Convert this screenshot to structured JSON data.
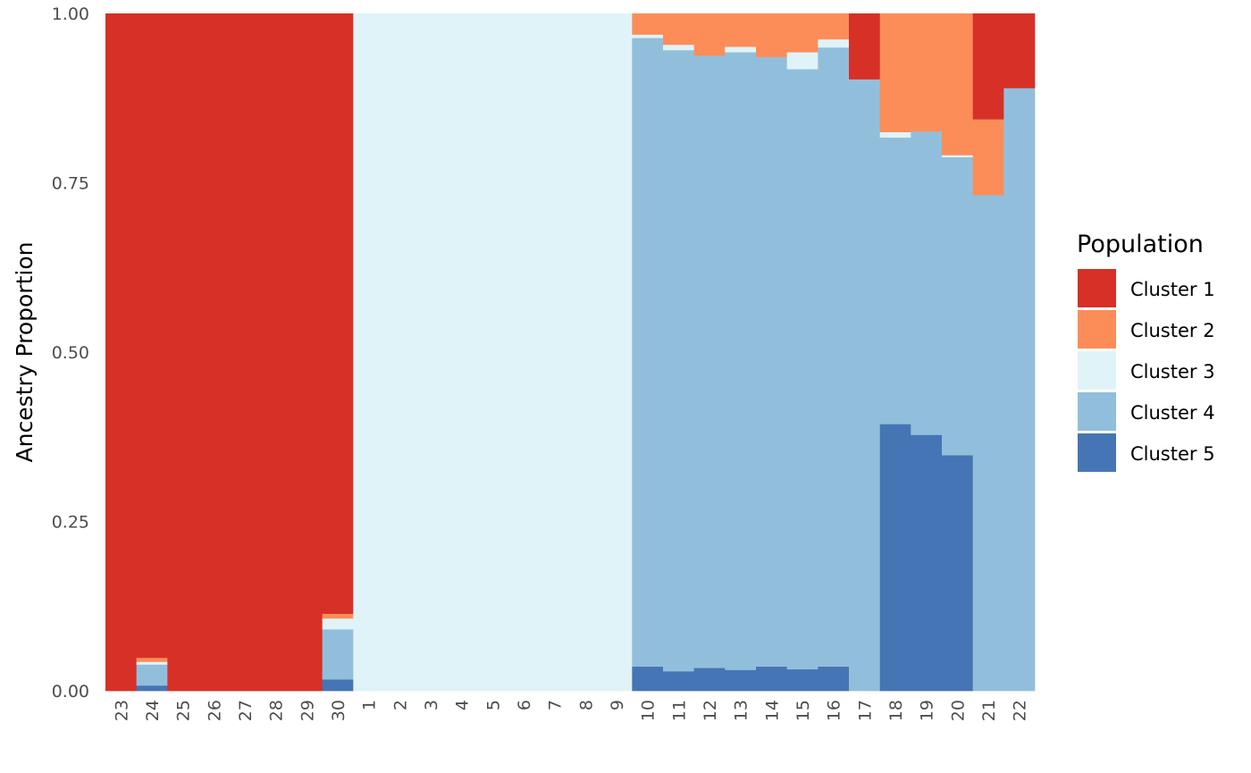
{
  "chart_data": {
    "type": "bar",
    "stacked": true,
    "title": "",
    "xlabel": "",
    "ylabel": "Ancestry Proportion",
    "ylim": [
      0,
      1
    ],
    "yticks": [
      "0.00",
      "0.25",
      "0.50",
      "0.75",
      "1.00"
    ],
    "grid": false,
    "legend": {
      "title": "Population",
      "position": "right"
    },
    "categories": [
      "23",
      "24",
      "25",
      "26",
      "27",
      "28",
      "29",
      "30",
      "1",
      "2",
      "3",
      "4",
      "5",
      "6",
      "7",
      "8",
      "9",
      "10",
      "11",
      "12",
      "13",
      "14",
      "15",
      "16",
      "17",
      "18",
      "19",
      "20",
      "21",
      "22"
    ],
    "series": [
      {
        "name": "Cluster 5",
        "color": "#4575b4",
        "values": [
          0,
          0.008,
          0,
          0,
          0,
          0,
          0,
          0.017,
          0,
          0,
          0,
          0,
          0,
          0,
          0,
          0,
          0,
          0.036,
          0.029,
          0.034,
          0.031,
          0.036,
          0.032,
          0.036,
          0,
          0.394,
          0.378,
          0.348,
          0,
          0
        ]
      },
      {
        "name": "Cluster 4",
        "color": "#91bfdb",
        "values": [
          0,
          0.031,
          0,
          0,
          0,
          0,
          0,
          0.074,
          0,
          0,
          0,
          0,
          0,
          0,
          0,
          0,
          0,
          0.928,
          0.917,
          0.904,
          0.912,
          0.9,
          0.886,
          0.914,
          0.903,
          0.423,
          0.448,
          0.44,
          0.732,
          0.89
        ]
      },
      {
        "name": "Cluster 3",
        "color": "#e0f3f8",
        "values": [
          0,
          0.004,
          0,
          0,
          0,
          0,
          0,
          0.016,
          1,
          1,
          1,
          1,
          1,
          1,
          1,
          1,
          1,
          0.005,
          0.008,
          0,
          0.008,
          0,
          0.025,
          0.012,
          0,
          0.008,
          0,
          0.003,
          0,
          0
        ]
      },
      {
        "name": "Cluster 2",
        "color": "#fc8d59",
        "values": [
          0,
          0.006,
          0,
          0,
          0,
          0,
          0,
          0.007,
          0,
          0,
          0,
          0,
          0,
          0,
          0,
          0,
          0,
          0.031,
          0.046,
          0.062,
          0.049,
          0.064,
          0.057,
          0.038,
          0,
          0.175,
          0.174,
          0.209,
          0.112,
          0
        ]
      },
      {
        "name": "Cluster 1",
        "color": "#d73027",
        "values": [
          1,
          0.951,
          1,
          1,
          1,
          1,
          1,
          0.886,
          0,
          0,
          0,
          0,
          0,
          0,
          0,
          0,
          0,
          0,
          0,
          0,
          0,
          0,
          0,
          0,
          0.097,
          0,
          0,
          0,
          0.156,
          0.11
        ]
      }
    ],
    "legend_order": [
      "Cluster 1",
      "Cluster 2",
      "Cluster 3",
      "Cluster 4",
      "Cluster 5"
    ]
  }
}
